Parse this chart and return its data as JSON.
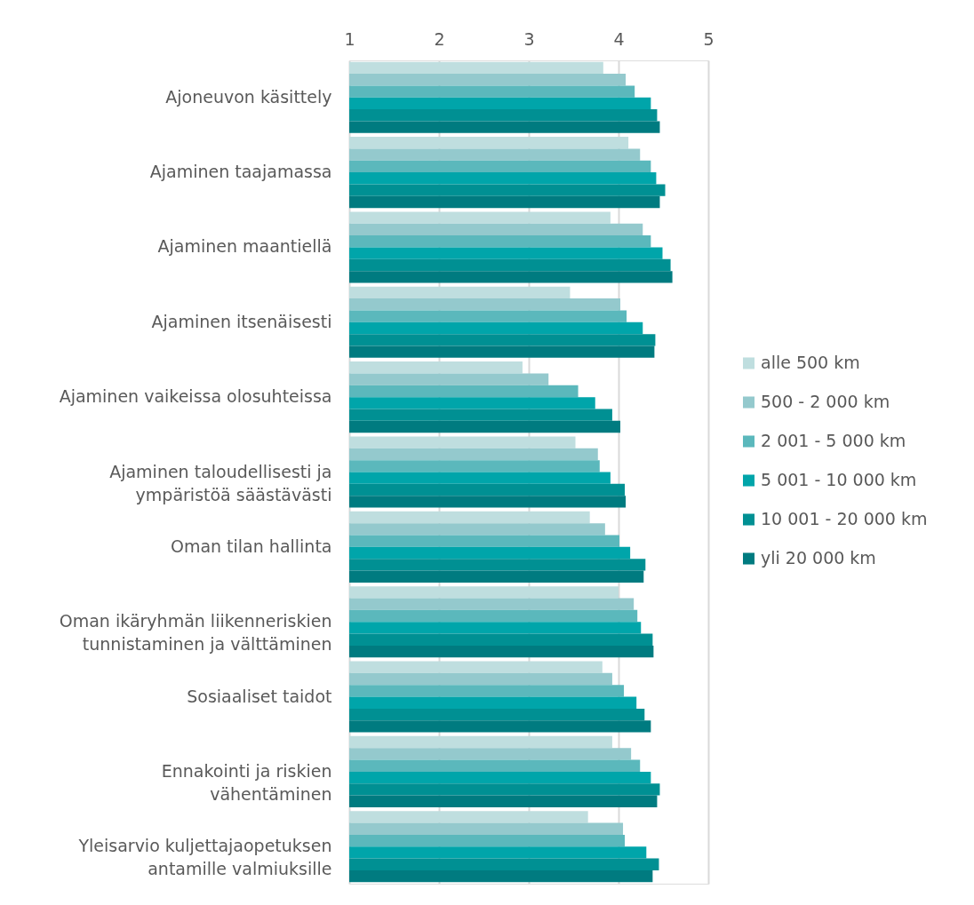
{
  "chart_data": {
    "type": "bar",
    "orientation": "horizontal",
    "categories": [
      "Ajoneuvon käsittely",
      "Ajaminen taajamassa",
      "Ajaminen maantiellä",
      "Ajaminen itsenäisesti",
      "Ajaminen vaikeissa olosuhteissa",
      "Ajaminen taloudellisesti ja ympäristöä säästävästi",
      "Oman tilan hallinta",
      "Oman ikäryhmän liikenneriskien tunnistaminen ja välttäminen",
      "Sosiaaliset taidot",
      "Ennakointi ja riskien vähentäminen",
      "Yleisarvio kuljettajaopetuksen antamille valmiuksille"
    ],
    "series": [
      {
        "name": "alle 500 km",
        "color": "#bfdedf",
        "values": [
          3.83,
          4.11,
          3.91,
          3.46,
          2.93,
          3.52,
          3.68,
          4.0,
          3.82,
          3.93,
          3.66
        ]
      },
      {
        "name": "500 - 2 000 km",
        "color": "#94c9cd",
        "values": [
          4.08,
          4.24,
          4.27,
          4.02,
          3.22,
          3.77,
          3.85,
          4.17,
          3.93,
          4.14,
          4.05
        ]
      },
      {
        "name": "2 001 - 5 000 km",
        "color": "#5bb8bc",
        "values": [
          4.18,
          4.36,
          4.36,
          4.09,
          3.55,
          3.79,
          4.01,
          4.21,
          4.06,
          4.24,
          4.07
        ]
      },
      {
        "name": "5 001 - 10 000 km",
        "color": "#00a5aa",
        "values": [
          4.36,
          4.42,
          4.49,
          4.27,
          3.74,
          3.91,
          4.13,
          4.25,
          4.2,
          4.36,
          4.31
        ]
      },
      {
        "name": "10 001 - 20 000 km",
        "color": "#009093",
        "values": [
          4.43,
          4.52,
          4.58,
          4.41,
          3.93,
          4.07,
          4.3,
          4.38,
          4.29,
          4.46,
          4.45
        ]
      },
      {
        "name": "yli 20 000 km",
        "color": "#007b80",
        "values": [
          4.46,
          4.46,
          4.6,
          4.4,
          4.02,
          4.08,
          4.28,
          4.39,
          4.36,
          4.43,
          4.38
        ]
      }
    ],
    "xlim": [
      1,
      5
    ],
    "xticks": [
      1,
      2,
      3,
      4,
      5
    ],
    "grid": "x",
    "legend": "right"
  }
}
